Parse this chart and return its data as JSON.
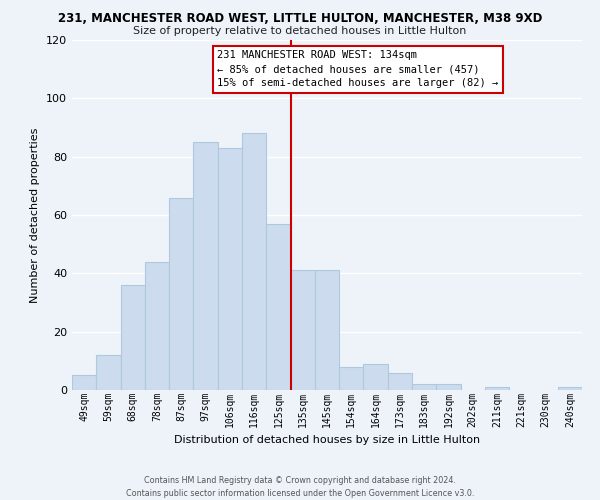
{
  "title": "231, MANCHESTER ROAD WEST, LITTLE HULTON, MANCHESTER, M38 9XD",
  "subtitle": "Size of property relative to detached houses in Little Hulton",
  "xlabel": "Distribution of detached houses by size in Little Hulton",
  "ylabel": "Number of detached properties",
  "bar_labels": [
    "49sqm",
    "59sqm",
    "68sqm",
    "78sqm",
    "87sqm",
    "97sqm",
    "106sqm",
    "116sqm",
    "125sqm",
    "135sqm",
    "145sqm",
    "154sqm",
    "164sqm",
    "173sqm",
    "183sqm",
    "192sqm",
    "202sqm",
    "211sqm",
    "221sqm",
    "230sqm",
    "240sqm"
  ],
  "bar_values": [
    5,
    12,
    36,
    44,
    66,
    85,
    83,
    88,
    57,
    41,
    41,
    8,
    9,
    6,
    2,
    2,
    0,
    1,
    0,
    0,
    1
  ],
  "bar_color_light": "#ccdcee",
  "bar_color_dark": "#aec8de",
  "annotation_lines": [
    "231 MANCHESTER ROAD WEST: 134sqm",
    "← 85% of detached houses are smaller (457)",
    "15% of semi-detached houses are larger (82) →"
  ],
  "ylim": [
    0,
    120
  ],
  "yticks": [
    0,
    20,
    40,
    60,
    80,
    100,
    120
  ],
  "footer_line1": "Contains HM Land Registry data © Crown copyright and database right 2024.",
  "footer_line2": "Contains public sector information licensed under the Open Government Licence v3.0.",
  "bg_color": "#eef3fa",
  "grid_color": "#ffffff"
}
